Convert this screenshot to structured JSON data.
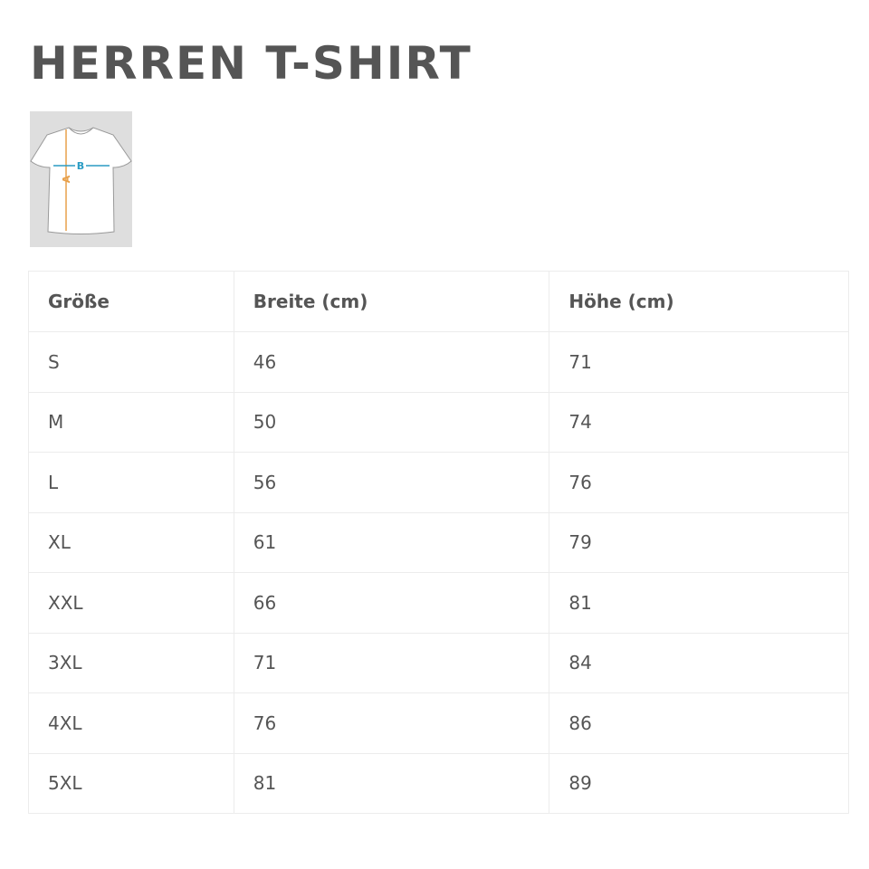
{
  "title": "HERREN T-SHIRT",
  "diagram": {
    "label_a": "A",
    "label_b": "B",
    "colors": {
      "a": "#e8a04a",
      "b": "#2a9cc4",
      "background": "#dedede"
    }
  },
  "table": {
    "headers": [
      "Größe",
      "Breite (cm)",
      "Höhe (cm)"
    ],
    "rows": [
      [
        "S",
        "46",
        "71"
      ],
      [
        "M",
        "50",
        "74"
      ],
      [
        "L",
        "56",
        "76"
      ],
      [
        "XL",
        "61",
        "79"
      ],
      [
        "XXL",
        "66",
        "81"
      ],
      [
        "3XL",
        "71",
        "84"
      ],
      [
        "4XL",
        "76",
        "86"
      ],
      [
        "5XL",
        "81",
        "89"
      ]
    ]
  }
}
